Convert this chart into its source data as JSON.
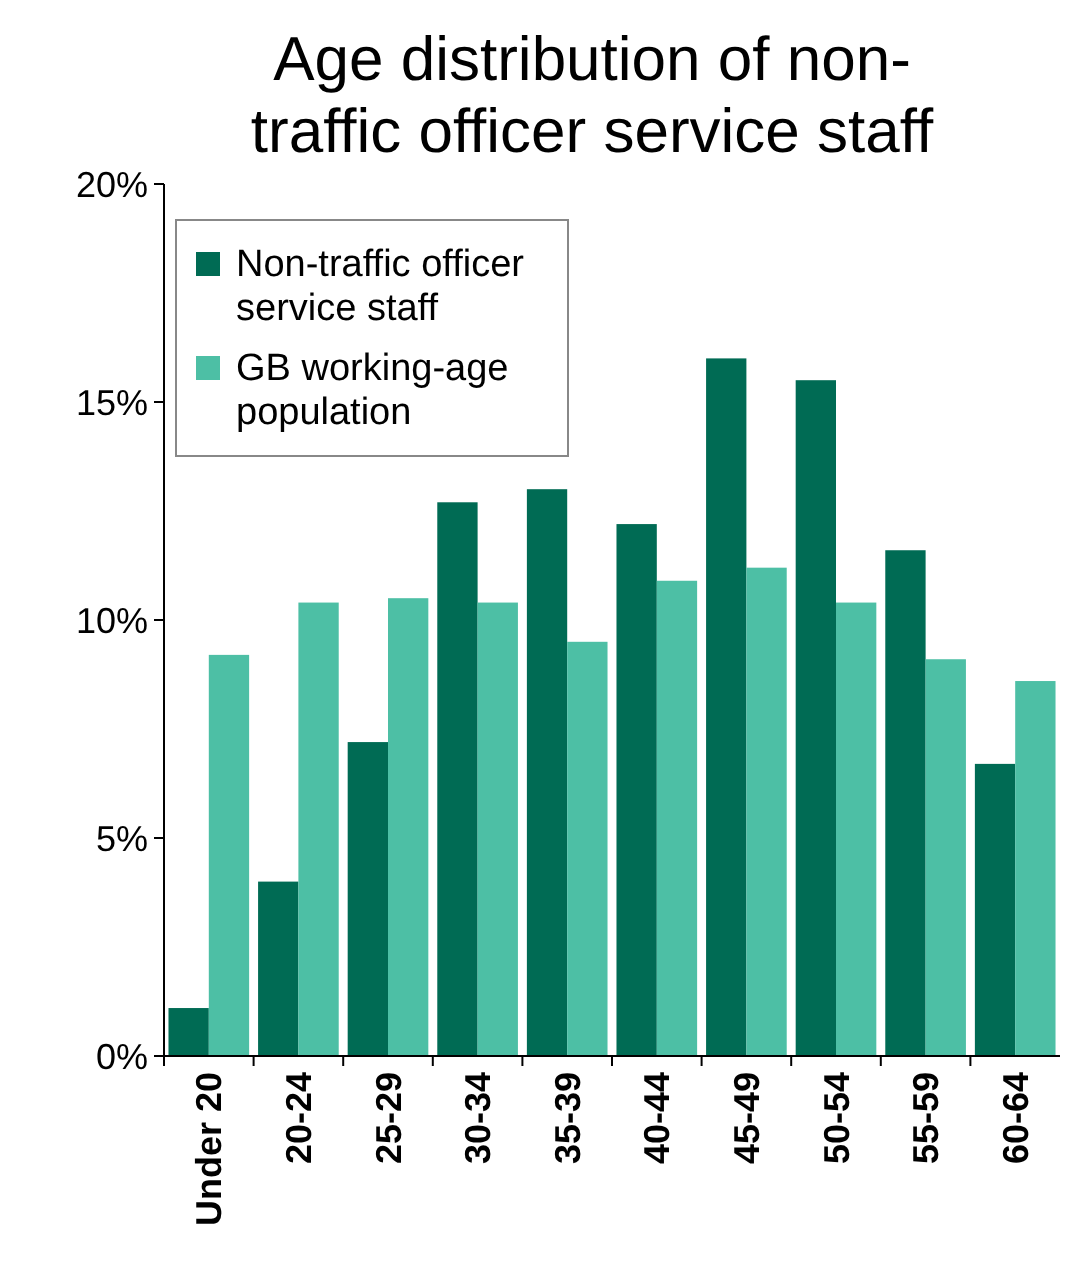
{
  "chart_data": {
    "type": "bar",
    "title": "Age distribution of non-traffic officer service staff",
    "categories": [
      "Under 20",
      "20-24",
      "25-29",
      "30-34",
      "35-39",
      "40-44",
      "45-49",
      "50-54",
      "55-59",
      "60-64"
    ],
    "series": [
      {
        "name": "Non-traffic officer service staff",
        "color": "#006b54",
        "values": [
          1.1,
          4.0,
          7.2,
          12.7,
          13.0,
          12.2,
          16.0,
          15.5,
          11.6,
          6.7
        ]
      },
      {
        "name": "GB working-age population",
        "color": "#4dbfa5",
        "values": [
          9.2,
          10.4,
          10.5,
          10.4,
          9.5,
          10.9,
          11.2,
          10.4,
          9.1,
          8.6
        ]
      }
    ],
    "ylim": [
      0,
      20
    ],
    "yticks": [
      {
        "value": 0,
        "label": "0%"
      },
      {
        "value": 5,
        "label": "5%"
      },
      {
        "value": 10,
        "label": "10%"
      },
      {
        "value": 15,
        "label": "15%"
      },
      {
        "value": 20,
        "label": "20%"
      }
    ],
    "grid": false,
    "legend": "top left"
  }
}
